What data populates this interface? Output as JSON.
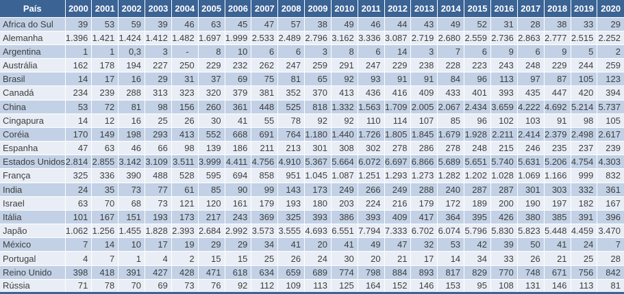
{
  "chart_data": {
    "type": "table",
    "country_header": "País",
    "columns": [
      "País",
      "2000",
      "2001",
      "2002",
      "2003",
      "2004",
      "2005",
      "2006",
      "2007",
      "2008",
      "2009",
      "2010",
      "2011",
      "2012",
      "2013",
      "2014",
      "2015",
      "2016",
      "2017",
      "2018",
      "2019",
      "2020"
    ],
    "rows": [
      {
        "country": "Africa do Sul",
        "values": [
          "39",
          "53",
          "59",
          "39",
          "46",
          "63",
          "45",
          "47",
          "57",
          "38",
          "49",
          "46",
          "44",
          "43",
          "49",
          "52",
          "31",
          "28",
          "38",
          "33",
          "29"
        ]
      },
      {
        "country": "Alemanha",
        "values": [
          "1.396",
          "1.421",
          "1.424",
          "1.412",
          "1.482",
          "1.697",
          "1.999",
          "2.533",
          "2.489",
          "2.796",
          "3.162",
          "3.336",
          "3.087",
          "2.719",
          "2.680",
          "2.559",
          "2.736",
          "2.863",
          "2.777",
          "2.515",
          "2.252"
        ]
      },
      {
        "country": "Argentina",
        "values": [
          "1",
          "1",
          "0,3",
          "3",
          "-",
          "8",
          "10",
          "6",
          "6",
          "3",
          "8",
          "6",
          "14",
          "3",
          "7",
          "6",
          "9",
          "6",
          "9",
          "5",
          "2"
        ]
      },
      {
        "country": "Austrália",
        "values": [
          "162",
          "178",
          "194",
          "227",
          "250",
          "229",
          "232",
          "262",
          "247",
          "259",
          "291",
          "247",
          "229",
          "238",
          "228",
          "223",
          "243",
          "248",
          "229",
          "244",
          "259"
        ]
      },
      {
        "country": "Brasil",
        "values": [
          "14",
          "17",
          "16",
          "29",
          "31",
          "37",
          "69",
          "75",
          "81",
          "65",
          "92",
          "93",
          "91",
          "91",
          "84",
          "96",
          "113",
          "97",
          "87",
          "105",
          "123"
        ]
      },
      {
        "country": "Canadá",
        "values": [
          "234",
          "239",
          "288",
          "313",
          "323",
          "320",
          "379",
          "381",
          "352",
          "370",
          "413",
          "436",
          "416",
          "409",
          "433",
          "401",
          "393",
          "435",
          "447",
          "420",
          "394"
        ]
      },
      {
        "country": "China",
        "values": [
          "53",
          "72",
          "81",
          "98",
          "156",
          "260",
          "361",
          "448",
          "525",
          "818",
          "1.332",
          "1.563",
          "1.709",
          "2.005",
          "2.067",
          "2.434",
          "3.659",
          "4.222",
          "4.692",
          "5.214",
          "5.737"
        ]
      },
      {
        "country": "Cingapura",
        "values": [
          "14",
          "12",
          "16",
          "25",
          "26",
          "30",
          "41",
          "55",
          "78",
          "92",
          "92",
          "110",
          "114",
          "107",
          "85",
          "96",
          "102",
          "103",
          "91",
          "98",
          "105"
        ]
      },
      {
        "country": "Coréia",
        "values": [
          "170",
          "149",
          "198",
          "293",
          "413",
          "552",
          "668",
          "691",
          "764",
          "1.180",
          "1.440",
          "1.726",
          "1.805",
          "1.845",
          "1.679",
          "1.928",
          "2.211",
          "2.414",
          "2.379",
          "2.498",
          "2.617"
        ]
      },
      {
        "country": "Espanha",
        "values": [
          "47",
          "63",
          "46",
          "66",
          "98",
          "139",
          "186",
          "211",
          "213",
          "301",
          "308",
          "302",
          "278",
          "286",
          "278",
          "248",
          "215",
          "246",
          "235",
          "237",
          "239"
        ]
      },
      {
        "country": "Estados Unidos",
        "values": [
          "2.814",
          "2.855",
          "3.142",
          "3.109",
          "3.511",
          "3.999",
          "4.411",
          "4.756",
          "4.910",
          "5.367",
          "5.664",
          "6.072",
          "6.697",
          "6.866",
          "5.689",
          "5.651",
          "5.740",
          "5.631",
          "5.206",
          "4.754",
          "4.303"
        ]
      },
      {
        "country": "França",
        "values": [
          "325",
          "336",
          "390",
          "488",
          "528",
          "595",
          "694",
          "858",
          "951",
          "1.045",
          "1.087",
          "1.251",
          "1.293",
          "1.273",
          "1.282",
          "1.202",
          "1.028",
          "1.069",
          "1.166",
          "999",
          "832"
        ]
      },
      {
        "country": "India",
        "values": [
          "24",
          "35",
          "73",
          "77",
          "61",
          "85",
          "90",
          "99",
          "143",
          "173",
          "249",
          "266",
          "249",
          "288",
          "240",
          "287",
          "287",
          "301",
          "303",
          "332",
          "361"
        ]
      },
      {
        "country": "Israel",
        "values": [
          "63",
          "70",
          "68",
          "73",
          "121",
          "120",
          "161",
          "179",
          "193",
          "180",
          "203",
          "224",
          "216",
          "179",
          "172",
          "189",
          "200",
          "190",
          "197",
          "182",
          "167"
        ]
      },
      {
        "country": "Itália",
        "values": [
          "101",
          "167",
          "151",
          "193",
          "173",
          "217",
          "243",
          "369",
          "325",
          "393",
          "386",
          "393",
          "409",
          "417",
          "364",
          "395",
          "426",
          "380",
          "385",
          "391",
          "396"
        ]
      },
      {
        "country": "Japão",
        "values": [
          "1.062",
          "1.256",
          "1.455",
          "1.828",
          "2.393",
          "2.684",
          "2.992",
          "3.573",
          "3.555",
          "4.693",
          "6.551",
          "7.794",
          "7.333",
          "6.702",
          "6.074",
          "5.796",
          "5.830",
          "5.823",
          "5.448",
          "4.459",
          "3.470"
        ]
      },
      {
        "country": "México",
        "values": [
          "7",
          "14",
          "10",
          "17",
          "19",
          "29",
          "29",
          "34",
          "41",
          "20",
          "41",
          "49",
          "47",
          "32",
          "53",
          "42",
          "39",
          "50",
          "41",
          "24",
          "7"
        ]
      },
      {
        "country": "Portugal",
        "values": [
          "4",
          "7",
          "1",
          "4",
          "2",
          "15",
          "15",
          "25",
          "26",
          "24",
          "30",
          "20",
          "21",
          "17",
          "14",
          "34",
          "33",
          "26",
          "21",
          "25",
          "28"
        ]
      },
      {
        "country": "Reino Unido",
        "values": [
          "398",
          "418",
          "391",
          "427",
          "428",
          "471",
          "618",
          "634",
          "659",
          "689",
          "774",
          "798",
          "884",
          "893",
          "817",
          "829",
          "770",
          "748",
          "671",
          "756",
          "842"
        ]
      },
      {
        "country": "Rússia",
        "values": [
          "71",
          "78",
          "70",
          "69",
          "73",
          "76",
          "92",
          "112",
          "109",
          "113",
          "125",
          "164",
          "152",
          "146",
          "153",
          "95",
          "108",
          "131",
          "146",
          "113",
          "81"
        ]
      }
    ]
  },
  "colors": {
    "header_bg": "#3B6394",
    "band_dark": "#C2D1E5",
    "band_light": "#E9EEF6",
    "gridline": "#FFFFFF",
    "text": "#3D3D3D",
    "header_text": "#FFFFFF"
  }
}
